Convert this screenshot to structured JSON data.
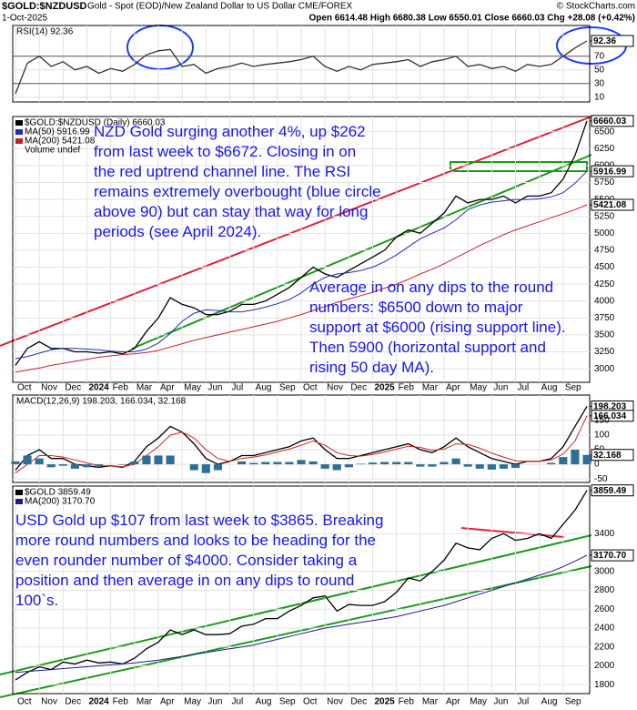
{
  "header": {
    "symbol": "$GOLD:$NZDUSD",
    "description": "Gold - Spot (EOD)/New Zealand Dollar to US Dollar  CME/FOREX",
    "source": "© StockCharts.com",
    "date": "1-Oct-2025",
    "quote": "Open 6614.48 High 6680.38 Low 6550.01 Close 6660.03 Chg +28.08 (+0.42%)"
  },
  "chart_data": [
    {
      "type": "line",
      "title": "RSI(14) 92.36",
      "ylim": [
        3,
        115
      ],
      "yticks": [
        92.36,
        70,
        50,
        30,
        10
      ],
      "grid": true,
      "series": [
        {
          "name": "RSI(14)",
          "color": "#333333",
          "values": [
            15,
            60,
            70,
            55,
            62,
            50,
            55,
            45,
            52,
            48,
            58,
            72,
            78,
            80,
            55,
            58,
            45,
            52,
            55,
            60,
            55,
            58,
            60,
            62,
            65,
            70,
            55,
            48,
            55,
            50,
            58,
            60,
            62,
            65,
            55,
            62,
            65,
            70,
            55,
            58,
            52,
            55,
            48,
            58,
            55,
            58,
            70,
            82,
            92.36
          ]
        }
      ]
    },
    {
      "type": "line",
      "volume_label": "Volume undef",
      "ylim": [
        2800,
        6725
      ],
      "yticks": [
        6660.03,
        6500,
        6250,
        6000,
        5916.99,
        5750,
        5500,
        5421.08,
        5250,
        5000,
        4750,
        4500,
        4250,
        4000,
        3750,
        3500,
        3250,
        3000
      ],
      "grid": true,
      "categories": [
        "Oct",
        null,
        "Nov",
        null,
        "Dec",
        null,
        "2024",
        null,
        "Feb",
        null,
        "Mar",
        null,
        "Apr",
        null,
        "May",
        null,
        "Jun",
        null,
        "Jul",
        null,
        "Aug",
        null,
        "Sep",
        null,
        "Oct",
        null,
        "Nov",
        null,
        "Dec",
        null,
        "2025",
        null,
        "Feb",
        null,
        "Mar",
        null,
        "Apr",
        null,
        "May",
        null,
        "Jun",
        null,
        "Jul",
        null,
        "Aug",
        null,
        "Sep",
        null,
        null
      ],
      "series": [
        {
          "name": "$GOLD:$NZDUSD (Daily) 6660.03",
          "color": "#000000",
          "values": [
            3050,
            3300,
            3400,
            3300,
            3300,
            3250,
            3250,
            3230,
            3250,
            3220,
            3300,
            3550,
            3750,
            4050,
            3950,
            3900,
            3800,
            3800,
            3850,
            3950,
            3950,
            4000,
            4100,
            4200,
            4350,
            4500,
            4400,
            4350,
            4450,
            4550,
            4650,
            4750,
            4950,
            5050,
            5000,
            5150,
            5300,
            5550,
            5450,
            5500,
            5500,
            5550,
            5450,
            5550,
            5550,
            5600,
            5800,
            6150,
            6660.03
          ]
        },
        {
          "name": "MA(50) 5916.99",
          "color": "#1c2fb0",
          "values": [
            3150,
            3180,
            3230,
            3280,
            3300,
            3300,
            3290,
            3280,
            3260,
            3250,
            3250,
            3290,
            3380,
            3520,
            3700,
            3820,
            3870,
            3860,
            3840,
            3840,
            3870,
            3910,
            3960,
            4020,
            4120,
            4250,
            4350,
            4400,
            4420,
            4450,
            4500,
            4580,
            4680,
            4800,
            4920,
            5000,
            5080,
            5200,
            5350,
            5420,
            5460,
            5480,
            5500,
            5500,
            5510,
            5540,
            5600,
            5740,
            5916.99
          ]
        },
        {
          "name": "MA(200) 5421.08",
          "color": "#c8202a",
          "values": [
            2950,
            2980,
            3010,
            3050,
            3080,
            3110,
            3140,
            3170,
            3190,
            3210,
            3220,
            3240,
            3270,
            3320,
            3370,
            3420,
            3460,
            3500,
            3540,
            3580,
            3620,
            3660,
            3700,
            3750,
            3800,
            3860,
            3920,
            3980,
            4030,
            4080,
            4130,
            4190,
            4250,
            4320,
            4400,
            4470,
            4550,
            4640,
            4730,
            4820,
            4900,
            4980,
            5050,
            5110,
            5170,
            5230,
            5290,
            5350,
            5421.08
          ]
        }
      ],
      "annotations": [
        {
          "lines": [
            "NZD Gold surging another 4%, up $262",
            "from last week to $6672. Closing in on",
            "the red uptrend channel line. The RSI",
            "remains extremely overbought (blue circle",
            "above 90) but can stay that way for long",
            "periods (see April 2024)."
          ]
        },
        {
          "lines": [
            "Average in on any dips to the round",
            "numbers: $6500 down to major",
            "support at $6000 (rising support line).",
            "Then 5900 (horizontal support and",
            "rising 50 day MA)."
          ]
        }
      ]
    },
    {
      "type": "line",
      "title": "MACD(12,26,9) 198.203, 166.034, 32.168",
      "ylim": [
        -62,
        237
      ],
      "yticks": [
        198.203,
        166.034,
        150,
        100,
        50,
        32.168,
        0,
        -50
      ],
      "grid": true,
      "series": [
        {
          "name": "MACD",
          "color": "#000000",
          "values": [
            -20,
            30,
            50,
            20,
            20,
            0,
            -5,
            -10,
            -5,
            -10,
            10,
            60,
            90,
            130,
            110,
            70,
            20,
            0,
            10,
            30,
            30,
            40,
            50,
            60,
            80,
            90,
            50,
            20,
            20,
            30,
            40,
            50,
            60,
            70,
            50,
            40,
            60,
            90,
            60,
            40,
            20,
            10,
            0,
            10,
            10,
            20,
            60,
            130,
            198.203
          ]
        },
        {
          "name": "Signal",
          "color": "#d42020",
          "values": [
            -30,
            0,
            30,
            30,
            25,
            15,
            5,
            -5,
            -5,
            -8,
            0,
            30,
            60,
            100,
            110,
            90,
            50,
            20,
            10,
            20,
            25,
            32,
            42,
            52,
            65,
            80,
            65,
            40,
            30,
            28,
            34,
            42,
            52,
            62,
            58,
            48,
            52,
            70,
            68,
            55,
            38,
            25,
            12,
            10,
            10,
            15,
            35,
            80,
            166.034
          ]
        },
        {
          "name": "Histogram",
          "type": "bar",
          "color": "#2e6f98",
          "values": [
            10,
            30,
            20,
            -10,
            -5,
            -15,
            -10,
            -5,
            0,
            -2,
            10,
            30,
            30,
            30,
            0,
            -20,
            -30,
            -20,
            0,
            10,
            5,
            8,
            8,
            8,
            15,
            10,
            -15,
            -20,
            -10,
            2,
            6,
            8,
            8,
            8,
            -8,
            -8,
            8,
            20,
            -8,
            -15,
            -18,
            -15,
            -12,
            0,
            0,
            5,
            25,
            50,
            32.168
          ]
        }
      ]
    },
    {
      "type": "line",
      "ylim": [
        1705,
        3905
      ],
      "yticks": [
        3859.49,
        3400,
        {
          "value": 3170.7,
          "label": "3170.70"
        },
        3000,
        2800,
        2600,
        2400,
        2200,
        2000,
        1800
      ],
      "grid": true,
      "categories": [
        "Oct",
        null,
        "Nov",
        null,
        "Dec",
        null,
        "2024",
        null,
        "Feb",
        null,
        "Mar",
        null,
        "Apr",
        null,
        "May",
        null,
        "Jun",
        null,
        "Jul",
        null,
        "Aug",
        null,
        "Sep",
        null,
        "Oct",
        null,
        "Nov",
        null,
        "Dec",
        null,
        "2025",
        null,
        "Feb",
        null,
        "Mar",
        null,
        "Apr",
        null,
        "May",
        null,
        "Jun",
        null,
        "Jul",
        null,
        "Aug",
        null,
        "Sep",
        null,
        null
      ],
      "series": [
        {
          "name": "$GOLD 3859.49",
          "color": "#000000",
          "values": [
            1850,
            1930,
            1990,
            1960,
            2040,
            2020,
            2060,
            2030,
            2040,
            2020,
            2080,
            2180,
            2250,
            2380,
            2330,
            2380,
            2330,
            2330,
            2340,
            2420,
            2440,
            2500,
            2500,
            2580,
            2640,
            2720,
            2740,
            2580,
            2650,
            2640,
            2640,
            2680,
            2780,
            2930,
            2900,
            3000,
            3120,
            3300,
            3250,
            3230,
            3350,
            3400,
            3330,
            3350,
            3400,
            3350,
            3500,
            3650,
            3859.49
          ]
        },
        {
          "name": "MA(200) 3170.70",
          "color": "#1a1a8c",
          "values": [
            1930,
            1940,
            1950,
            1960,
            1970,
            1980,
            1990,
            2000,
            2010,
            2020,
            2030,
            2045,
            2060,
            2080,
            2100,
            2120,
            2140,
            2160,
            2180,
            2200,
            2220,
            2250,
            2280,
            2310,
            2340,
            2370,
            2400,
            2420,
            2440,
            2460,
            2480,
            2500,
            2520,
            2550,
            2580,
            2610,
            2640,
            2680,
            2720,
            2760,
            2800,
            2840,
            2880,
            2920,
            2960,
            3000,
            3050,
            3110,
            3170.7
          ]
        }
      ],
      "annotations": [
        {
          "lines": [
            "USD Gold up $107 from last week to $3865. Breaking",
            "more round numbers and looks to be heading for the",
            "even rounder number of $4000. Consider taking a",
            "position and then average in on any dips to round",
            "100`s."
          ]
        }
      ]
    }
  ]
}
